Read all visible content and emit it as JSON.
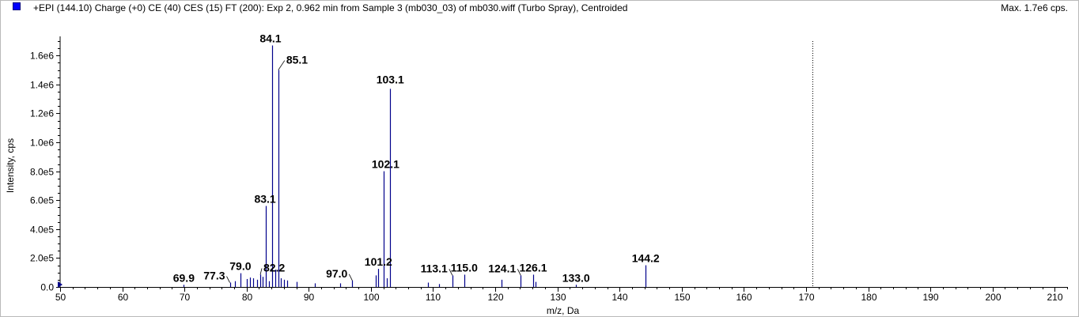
{
  "header": {
    "title": "+EPI (144.10) Charge (+0) CE (40) CES (15) FT (200): Exp 2, 0.962 min from Sample 3 (mb030_03) of mb030.wiff (Turbo Spray), Centroided",
    "max_label": "Max. 1.7e6 cps."
  },
  "colors": {
    "series": "#00008b",
    "legend_swatch": "#0000ff",
    "cursor_line": "#000000"
  },
  "chart_data": {
    "type": "bar",
    "subtype": "mass-spectrum-stick",
    "xlabel": "m/z, Da",
    "ylabel": "Intensity, cps",
    "xlim": [
      50,
      212
    ],
    "ylim": [
      0,
      1700000
    ],
    "x_ticks": [
      50,
      60,
      70,
      80,
      90,
      100,
      110,
      120,
      130,
      140,
      150,
      160,
      170,
      180,
      190,
      200,
      210
    ],
    "y_ticks": [
      {
        "value": 0,
        "label": "0.0"
      },
      {
        "value": 200000,
        "label": "2.0e5"
      },
      {
        "value": 400000,
        "label": "4.0e5"
      },
      {
        "value": 600000,
        "label": "6.0e5"
      },
      {
        "value": 800000,
        "label": "8.0e5"
      },
      {
        "value": 1000000,
        "label": "1.0e6"
      },
      {
        "value": 1200000,
        "label": "1.2e6"
      },
      {
        "value": 1400000,
        "label": "1.4e6"
      },
      {
        "value": 1600000,
        "label": "1.6e6"
      }
    ],
    "grid": false,
    "cursor_x": 171,
    "peaks": [
      {
        "mz": 69.9,
        "intensity": 15000
      },
      {
        "mz": 77.3,
        "intensity": 30000
      },
      {
        "mz": 78.1,
        "intensity": 40000
      },
      {
        "mz": 79.0,
        "intensity": 95000
      },
      {
        "mz": 80.0,
        "intensity": 55000
      },
      {
        "mz": 80.5,
        "intensity": 65000
      },
      {
        "mz": 81.1,
        "intensity": 60000
      },
      {
        "mz": 81.7,
        "intensity": 50000
      },
      {
        "mz": 82.2,
        "intensity": 85000
      },
      {
        "mz": 82.6,
        "intensity": 70000
      },
      {
        "mz": 83.1,
        "intensity": 560000
      },
      {
        "mz": 83.6,
        "intensity": 40000
      },
      {
        "mz": 84.1,
        "intensity": 1670000
      },
      {
        "mz": 84.6,
        "intensity": 120000
      },
      {
        "mz": 85.1,
        "intensity": 1500000
      },
      {
        "mz": 85.5,
        "intensity": 60000
      },
      {
        "mz": 86.0,
        "intensity": 50000
      },
      {
        "mz": 86.5,
        "intensity": 45000
      },
      {
        "mz": 88.0,
        "intensity": 35000
      },
      {
        "mz": 91.0,
        "intensity": 25000
      },
      {
        "mz": 95.0,
        "intensity": 25000
      },
      {
        "mz": 97.0,
        "intensity": 45000
      },
      {
        "mz": 100.8,
        "intensity": 80000
      },
      {
        "mz": 101.2,
        "intensity": 125000
      },
      {
        "mz": 102.1,
        "intensity": 800000
      },
      {
        "mz": 102.5,
        "intensity": 60000
      },
      {
        "mz": 103.1,
        "intensity": 1370000
      },
      {
        "mz": 109.2,
        "intensity": 30000
      },
      {
        "mz": 111.0,
        "intensity": 20000
      },
      {
        "mz": 113.1,
        "intensity": 80000
      },
      {
        "mz": 115.0,
        "intensity": 85000
      },
      {
        "mz": 121.0,
        "intensity": 50000
      },
      {
        "mz": 124.1,
        "intensity": 80000
      },
      {
        "mz": 126.1,
        "intensity": 85000
      },
      {
        "mz": 126.5,
        "intensity": 35000
      },
      {
        "mz": 133.0,
        "intensity": 15000
      },
      {
        "mz": 144.2,
        "intensity": 150000
      }
    ],
    "annotations": [
      {
        "text": "84.1",
        "mz": 84.1,
        "intensity": 1670000,
        "dx": -2,
        "dy": -4,
        "anchor": "middle",
        "leader": false
      },
      {
        "text": "85.1",
        "mz": 85.1,
        "intensity": 1500000,
        "dx": 10,
        "dy": -8,
        "anchor": "start",
        "leader": true
      },
      {
        "text": "103.1",
        "mz": 103.1,
        "intensity": 1370000,
        "dx": 0,
        "dy": -7,
        "anchor": "middle",
        "leader": false
      },
      {
        "text": "102.1",
        "mz": 102.1,
        "intensity": 800000,
        "dx": 2,
        "dy": -4,
        "anchor": "middle",
        "leader": false
      },
      {
        "text": "83.1",
        "mz": 83.1,
        "intensity": 560000,
        "dx": -1,
        "dy": -4,
        "anchor": "middle",
        "leader": false
      },
      {
        "text": "144.2",
        "mz": 144.2,
        "intensity": 150000,
        "dx": 0,
        "dy": -4,
        "anchor": "middle",
        "leader": false
      },
      {
        "text": "101.2",
        "mz": 101.2,
        "intensity": 125000,
        "dx": 0,
        "dy": -4,
        "anchor": "middle",
        "leader": false
      },
      {
        "text": "79.0",
        "mz": 79.0,
        "intensity": 95000,
        "dx": 0,
        "dy": -4,
        "anchor": "middle",
        "leader": false
      },
      {
        "text": "82.2",
        "mz": 82.2,
        "intensity": 85000,
        "dx": 4,
        "dy": -4,
        "anchor": "start",
        "leader": true
      },
      {
        "text": "115.0",
        "mz": 115.0,
        "intensity": 85000,
        "dx": 0,
        "dy": -4,
        "anchor": "middle",
        "leader": false
      },
      {
        "text": "126.1",
        "mz": 126.1,
        "intensity": 85000,
        "dx": 0,
        "dy": -4,
        "anchor": "middle",
        "leader": false
      },
      {
        "text": "113.1",
        "mz": 113.1,
        "intensity": 80000,
        "dx": -6,
        "dy": -4,
        "anchor": "end",
        "leader": true
      },
      {
        "text": "124.1",
        "mz": 124.1,
        "intensity": 80000,
        "dx": -6,
        "dy": -4,
        "anchor": "end",
        "leader": true
      },
      {
        "text": "97.0",
        "mz": 97.0,
        "intensity": 45000,
        "dx": -6,
        "dy": -4,
        "anchor": "end",
        "leader": true
      },
      {
        "text": "77.3",
        "mz": 77.3,
        "intensity": 30000,
        "dx": -6,
        "dy": -4,
        "anchor": "end",
        "leader": true
      },
      {
        "text": "69.9",
        "mz": 69.9,
        "intensity": 15000,
        "dx": 0,
        "dy": -4,
        "anchor": "middle",
        "leader": false
      },
      {
        "text": "133.0",
        "mz": 133.0,
        "intensity": 15000,
        "dx": 0,
        "dy": -4,
        "anchor": "middle",
        "leader": false
      }
    ]
  }
}
